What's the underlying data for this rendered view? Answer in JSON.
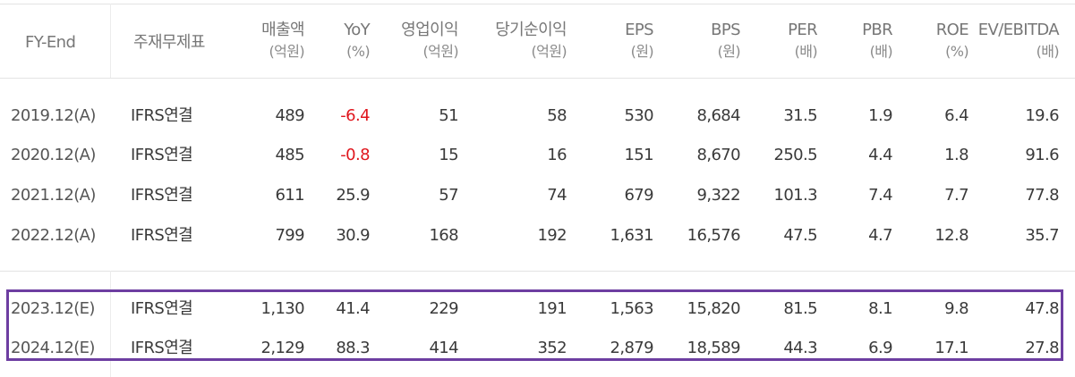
{
  "table": {
    "headers": [
      {
        "label": "FY-End",
        "sub": ""
      },
      {
        "label": "주재무제표",
        "sub": ""
      },
      {
        "label": "매출액",
        "sub": "(억원)"
      },
      {
        "label": "YoY",
        "sub": "(%)"
      },
      {
        "label": "영업이익",
        "sub": "(억원)"
      },
      {
        "label": "당기순이익",
        "sub": "(억원)"
      },
      {
        "label": "EPS",
        "sub": "(원)"
      },
      {
        "label": "BPS",
        "sub": "(원)"
      },
      {
        "label": "PER",
        "sub": "(배)"
      },
      {
        "label": "PBR",
        "sub": "(배)"
      },
      {
        "label": "ROE",
        "sub": "(%)"
      },
      {
        "label": "EV/EBITDA",
        "sub": "(배)"
      }
    ],
    "actual_rows": [
      [
        "2019.12(A)",
        "IFRS연결",
        "489",
        "-6.4",
        "51",
        "58",
        "530",
        "8,684",
        "31.5",
        "1.9",
        "6.4",
        "19.6"
      ],
      [
        "2020.12(A)",
        "IFRS연결",
        "485",
        "-0.8",
        "15",
        "16",
        "151",
        "8,670",
        "250.5",
        "4.4",
        "1.8",
        "91.6"
      ],
      [
        "2021.12(A)",
        "IFRS연결",
        "611",
        "25.9",
        "57",
        "74",
        "679",
        "9,322",
        "101.3",
        "7.4",
        "7.7",
        "77.8"
      ],
      [
        "2022.12(A)",
        "IFRS연결",
        "799",
        "30.9",
        "168",
        "192",
        "1,631",
        "16,576",
        "47.5",
        "4.7",
        "12.8",
        "35.7"
      ]
    ],
    "estimate_rows": [
      [
        "2023.12(E)",
        "IFRS연결",
        "1,130",
        "41.4",
        "229",
        "191",
        "1,563",
        "15,820",
        "81.5",
        "8.1",
        "9.8",
        "47.8"
      ],
      [
        "2024.12(E)",
        "IFRS연결",
        "2,129",
        "88.3",
        "414",
        "352",
        "2,879",
        "18,589",
        "44.3",
        "6.9",
        "17.1",
        "27.8"
      ]
    ],
    "colors": {
      "negative": "#e0161d",
      "highlight_border": "#6d3ea1",
      "text": "#3a3a3a",
      "header": "#777777"
    }
  }
}
